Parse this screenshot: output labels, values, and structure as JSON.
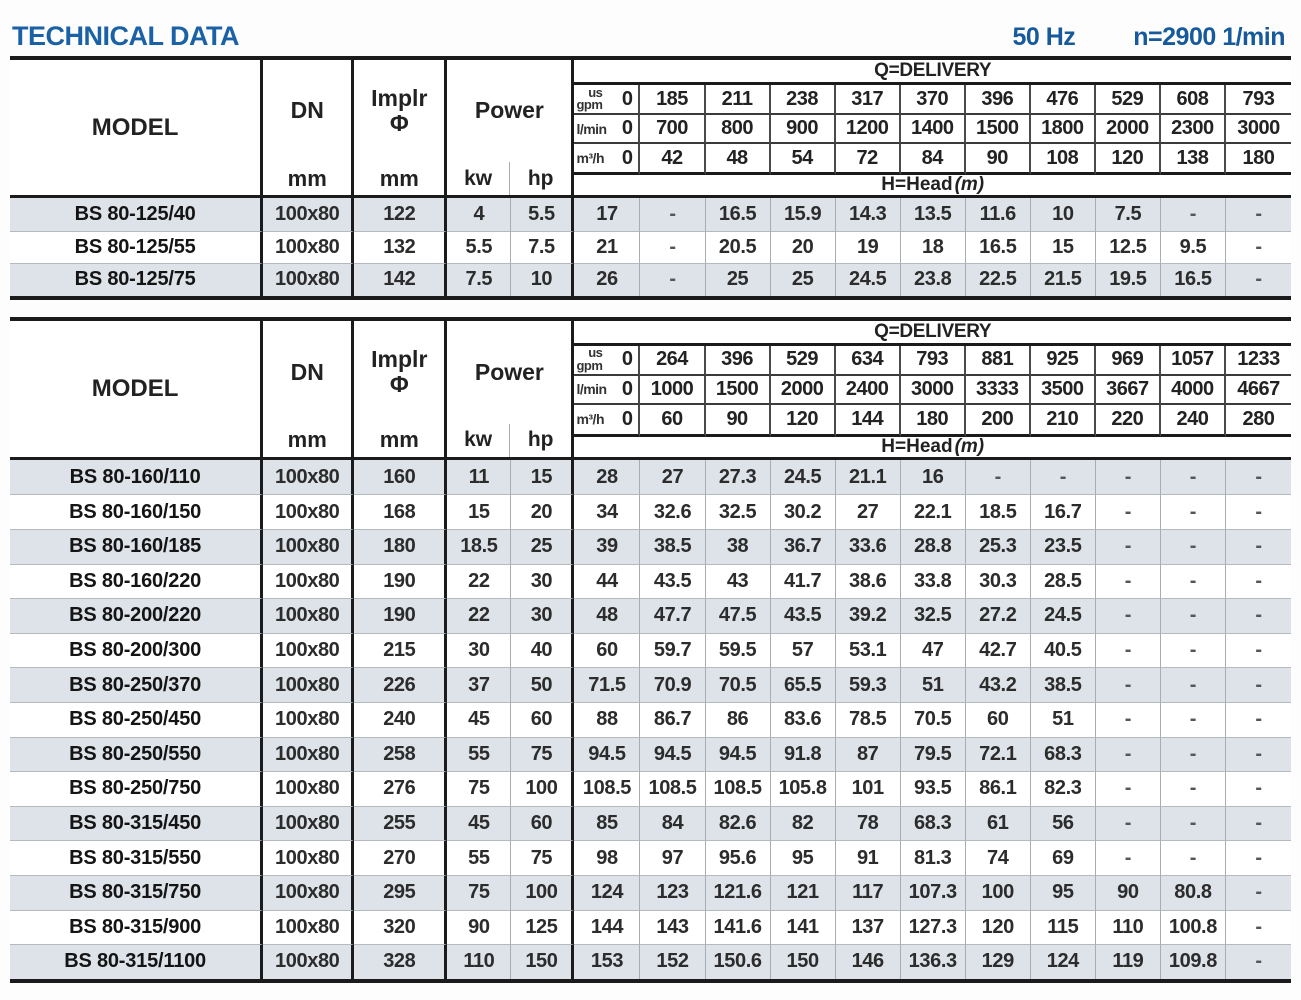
{
  "header": {
    "title": "TECHNICAL DATA",
    "frequency": "50 Hz",
    "speed": "n=2900 1/min"
  },
  "colors": {
    "title_blue": "#1b61a5",
    "row_shade": "#dde3e9",
    "border_dark": "#1b1b1b",
    "grid_gray": "#a8adb3"
  },
  "tables": [
    {
      "header": {
        "model": "MODEL",
        "dn": "DN",
        "dn_unit": "mm",
        "implr_line1": "Implr",
        "implr_line2": "Φ",
        "implr_unit": "mm",
        "power": "Power",
        "power_kw": "kw",
        "power_hp": "hp",
        "delivery_title": "Q=DELIVERY",
        "head_title": "H=Head",
        "head_unit": "(m)",
        "unit_rows": [
          {
            "label_top": "us",
            "label": "gpm",
            "values": [
              "0",
              "185",
              "211",
              "238",
              "317",
              "370",
              "396",
              "476",
              "529",
              "608",
              "793"
            ]
          },
          {
            "label_top": "",
            "label": "l/min",
            "values": [
              "0",
              "700",
              "800",
              "900",
              "1200",
              "1400",
              "1500",
              "1800",
              "2000",
              "2300",
              "3000"
            ]
          },
          {
            "label_top": "",
            "label": "m³/h",
            "values": [
              "0",
              "42",
              "48",
              "54",
              "72",
              "84",
              "90",
              "108",
              "120",
              "138",
              "180"
            ]
          }
        ]
      },
      "rows": [
        {
          "model": "BS 80-125/40",
          "dn": "100x80",
          "implr": "122",
          "kw": "4",
          "hp": "5.5",
          "head": [
            "17",
            "-",
            "16.5",
            "15.9",
            "14.3",
            "13.5",
            "11.6",
            "10",
            "7.5",
            "-",
            "-"
          ]
        },
        {
          "model": "BS 80-125/55",
          "dn": "100x80",
          "implr": "132",
          "kw": "5.5",
          "hp": "7.5",
          "head": [
            "21",
            "-",
            "20.5",
            "20",
            "19",
            "18",
            "16.5",
            "15",
            "12.5",
            "9.5",
            "-"
          ]
        },
        {
          "model": "BS 80-125/75",
          "dn": "100x80",
          "implr": "142",
          "kw": "7.5",
          "hp": "10",
          "head": [
            "26",
            "-",
            "25",
            "25",
            "24.5",
            "23.8",
            "22.5",
            "21.5",
            "19.5",
            "16.5",
            "-"
          ]
        }
      ]
    },
    {
      "header": {
        "model": "MODEL",
        "dn": "DN",
        "dn_unit": "mm",
        "implr_line1": "Implr",
        "implr_line2": "Φ",
        "implr_unit": "mm",
        "power": "Power",
        "power_kw": "kw",
        "power_hp": "hp",
        "delivery_title": "Q=DELIVERY",
        "head_title": "H=Head",
        "head_unit": "(m)",
        "unit_rows": [
          {
            "label_top": "us",
            "label": "gpm",
            "values": [
              "0",
              "264",
              "396",
              "529",
              "634",
              "793",
              "881",
              "925",
              "969",
              "1057",
              "1233"
            ]
          },
          {
            "label_top": "",
            "label": "l/min",
            "values": [
              "0",
              "1000",
              "1500",
              "2000",
              "2400",
              "3000",
              "3333",
              "3500",
              "3667",
              "4000",
              "4667"
            ]
          },
          {
            "label_top": "",
            "label": "m³/h",
            "values": [
              "0",
              "60",
              "90",
              "120",
              "144",
              "180",
              "200",
              "210",
              "220",
              "240",
              "280"
            ]
          }
        ]
      },
      "rows": [
        {
          "model": "BS 80-160/110",
          "dn": "100x80",
          "implr": "160",
          "kw": "11",
          "hp": "15",
          "head": [
            "28",
            "27",
            "27.3",
            "24.5",
            "21.1",
            "16",
            "-",
            "-",
            "-",
            "-",
            "-"
          ]
        },
        {
          "model": "BS 80-160/150",
          "dn": "100x80",
          "implr": "168",
          "kw": "15",
          "hp": "20",
          "head": [
            "34",
            "32.6",
            "32.5",
            "30.2",
            "27",
            "22.1",
            "18.5",
            "16.7",
            "-",
            "-",
            "-"
          ]
        },
        {
          "model": "BS 80-160/185",
          "dn": "100x80",
          "implr": "180",
          "kw": "18.5",
          "hp": "25",
          "head": [
            "39",
            "38.5",
            "38",
            "36.7",
            "33.6",
            "28.8",
            "25.3",
            "23.5",
            "-",
            "-",
            "-"
          ]
        },
        {
          "model": "BS 80-160/220",
          "dn": "100x80",
          "implr": "190",
          "kw": "22",
          "hp": "30",
          "head": [
            "44",
            "43.5",
            "43",
            "41.7",
            "38.6",
            "33.8",
            "30.3",
            "28.5",
            "-",
            "-",
            "-"
          ]
        },
        {
          "model": "BS 80-200/220",
          "dn": "100x80",
          "implr": "190",
          "kw": "22",
          "hp": "30",
          "head": [
            "48",
            "47.7",
            "47.5",
            "43.5",
            "39.2",
            "32.5",
            "27.2",
            "24.5",
            "-",
            "-",
            "-"
          ]
        },
        {
          "model": "BS 80-200/300",
          "dn": "100x80",
          "implr": "215",
          "kw": "30",
          "hp": "40",
          "head": [
            "60",
            "59.7",
            "59.5",
            "57",
            "53.1",
            "47",
            "42.7",
            "40.5",
            "-",
            "-",
            "-"
          ]
        },
        {
          "model": "BS 80-250/370",
          "dn": "100x80",
          "implr": "226",
          "kw": "37",
          "hp": "50",
          "head": [
            "71.5",
            "70.9",
            "70.5",
            "65.5",
            "59.3",
            "51",
            "43.2",
            "38.5",
            "-",
            "-",
            "-"
          ]
        },
        {
          "model": "BS 80-250/450",
          "dn": "100x80",
          "implr": "240",
          "kw": "45",
          "hp": "60",
          "head": [
            "88",
            "86.7",
            "86",
            "83.6",
            "78.5",
            "70.5",
            "60",
            "51",
            "-",
            "-",
            "-"
          ]
        },
        {
          "model": "BS 80-250/550",
          "dn": "100x80",
          "implr": "258",
          "kw": "55",
          "hp": "75",
          "head": [
            "94.5",
            "94.5",
            "94.5",
            "91.8",
            "87",
            "79.5",
            "72.1",
            "68.3",
            "-",
            "-",
            "-"
          ]
        },
        {
          "model": "BS 80-250/750",
          "dn": "100x80",
          "implr": "276",
          "kw": "75",
          "hp": "100",
          "head": [
            "108.5",
            "108.5",
            "108.5",
            "105.8",
            "101",
            "93.5",
            "86.1",
            "82.3",
            "-",
            "-",
            "-"
          ]
        },
        {
          "model": "BS 80-315/450",
          "dn": "100x80",
          "implr": "255",
          "kw": "45",
          "hp": "60",
          "head": [
            "85",
            "84",
            "82.6",
            "82",
            "78",
            "68.3",
            "61",
            "56",
            "-",
            "-",
            "-"
          ]
        },
        {
          "model": "BS 80-315/550",
          "dn": "100x80",
          "implr": "270",
          "kw": "55",
          "hp": "75",
          "head": [
            "98",
            "97",
            "95.6",
            "95",
            "91",
            "81.3",
            "74",
            "69",
            "-",
            "-",
            "-"
          ]
        },
        {
          "model": "BS 80-315/750",
          "dn": "100x80",
          "implr": "295",
          "kw": "75",
          "hp": "100",
          "head": [
            "124",
            "123",
            "121.6",
            "121",
            "117",
            "107.3",
            "100",
            "95",
            "90",
            "80.8",
            "-"
          ]
        },
        {
          "model": "BS 80-315/900",
          "dn": "100x80",
          "implr": "320",
          "kw": "90",
          "hp": "125",
          "head": [
            "144",
            "143",
            "141.6",
            "141",
            "137",
            "127.3",
            "120",
            "115",
            "110",
            "100.8",
            "-"
          ]
        },
        {
          "model": "BS 80-315/1100",
          "dn": "100x80",
          "implr": "328",
          "kw": "110",
          "hp": "150",
          "head": [
            "153",
            "152",
            "150.6",
            "150",
            "146",
            "136.3",
            "129",
            "124",
            "119",
            "109.8",
            "-"
          ]
        }
      ]
    }
  ]
}
